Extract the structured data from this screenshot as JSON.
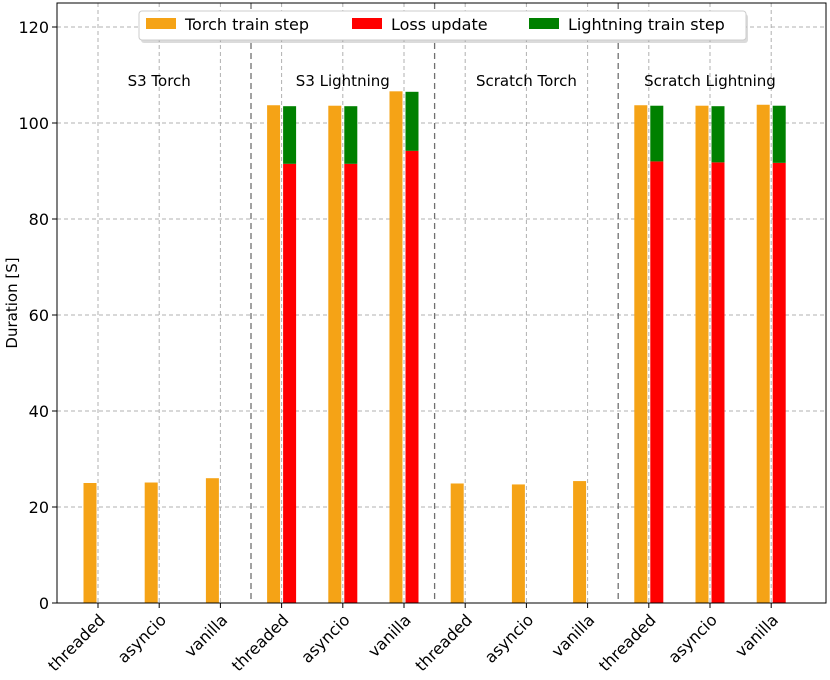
{
  "chart_data": {
    "type": "bar",
    "title": "",
    "xlabel": "",
    "ylabel": "Duration [S]",
    "ylim": [
      0,
      125
    ],
    "yticks": [
      0,
      20,
      40,
      60,
      80,
      100,
      120
    ],
    "grid": true,
    "legend_position": "top-center",
    "groups": [
      {
        "label": "S3 Torch",
        "categories": [
          "threaded",
          "asyncio",
          "vanilla"
        ]
      },
      {
        "label": "S3 Lightning",
        "categories": [
          "threaded",
          "asyncio",
          "vanilla"
        ]
      },
      {
        "label": "Scratch Torch",
        "categories": [
          "threaded",
          "asyncio",
          "vanilla"
        ]
      },
      {
        "label": "Scratch Lightning",
        "categories": [
          "threaded",
          "asyncio",
          "vanilla"
        ]
      }
    ],
    "series": [
      {
        "name": "Torch train step",
        "color": "#f5a316",
        "values": [
          25.0,
          25.1,
          26.0,
          103.7,
          103.6,
          106.6,
          24.9,
          24.7,
          25.4,
          103.7,
          103.6,
          103.8
        ]
      },
      {
        "name": "Loss update",
        "color": "#ff0000",
        "values": [
          0,
          0,
          0,
          91.5,
          91.5,
          94.2,
          0,
          0,
          0,
          92.0,
          91.8,
          91.7
        ]
      },
      {
        "name": "Lightning train step",
        "color": "#008000",
        "values": [
          0,
          0,
          0,
          12.0,
          12.0,
          12.3,
          0,
          0,
          0,
          11.6,
          11.7,
          11.9
        ]
      }
    ]
  }
}
